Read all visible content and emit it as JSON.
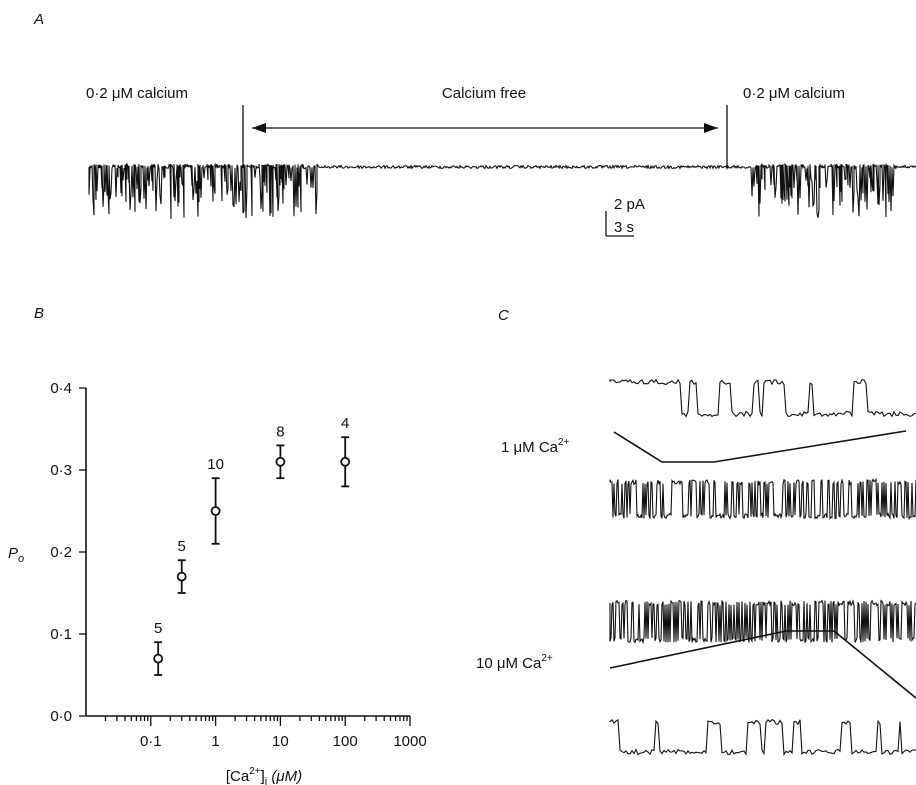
{
  "panel_a": {
    "panel_label": "A",
    "left_label": "0·2 μM calcium",
    "middle_label": "Calcium free",
    "right_label": "0·2 μM calcium",
    "scale_current": "2 pA",
    "scale_time": "3 s"
  },
  "panel_b": {
    "panel_label": "B"
  },
  "panel_c": {
    "panel_label": "C",
    "trace_label_1": "1 μM Ca",
    "trace_label_2": "10 μM Ca",
    "superscript": "2+"
  },
  "chart_data": {
    "type": "scatter",
    "title": "",
    "xlabel_main": "[Ca",
    "xlabel_sup": "2+",
    "xlabel_close": "]",
    "xlabel_sub": "i",
    "xlabel_unit": "(μM)",
    "ylabel_main": "P",
    "ylabel_sub": "o",
    "x_scale": "log",
    "xlim": [
      0.01,
      1000
    ],
    "ylim": [
      0,
      0.4
    ],
    "x_ticks": [
      0.1,
      1,
      10,
      100,
      1000
    ],
    "x_tick_labels": [
      "0·1",
      "1",
      "10",
      "100",
      "1000"
    ],
    "y_ticks": [
      0,
      0.1,
      0.2,
      0.3,
      0.4
    ],
    "y_tick_labels": [
      "0·0",
      "0·1",
      "0·2",
      "0·3",
      "0·4"
    ],
    "grid": false,
    "points": [
      {
        "x": 0.13,
        "y": 0.07,
        "err": 0.02,
        "n": "5"
      },
      {
        "x": 0.3,
        "y": 0.17,
        "err": 0.02,
        "n": "5"
      },
      {
        "x": 1,
        "y": 0.25,
        "err": 0.04,
        "n": "10"
      },
      {
        "x": 10,
        "y": 0.31,
        "err": 0.02,
        "n": "8"
      },
      {
        "x": 100,
        "y": 0.31,
        "err": 0.03,
        "n": "4"
      }
    ]
  }
}
